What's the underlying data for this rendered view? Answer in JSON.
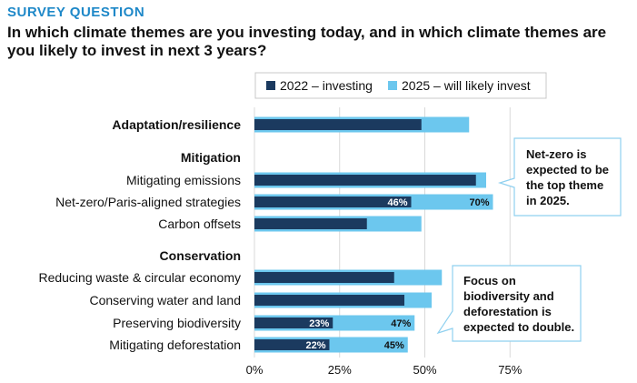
{
  "header": {
    "eyebrow": "SURVEY QUESTION",
    "title": "In which climate themes are you investing today, and in which climate themes are you likely to invest in next 3 years?"
  },
  "colors": {
    "series_2022": "#1b3a5f",
    "series_2025": "#6cc7ee",
    "grid": "#d9d9d9",
    "callout_border": "#8fd0ef"
  },
  "callouts": {
    "netzero": [
      "Net-zero is",
      "expected to be",
      "the top theme",
      "in 2025."
    ],
    "conservation": [
      "Focus on",
      "biodiversity and",
      "deforestation is",
      "expected to double."
    ]
  },
  "chart_data": {
    "type": "bar",
    "orientation": "horizontal",
    "stacked": false,
    "overlaid": true,
    "legend_position": "top",
    "grid": true,
    "xlim": [
      0,
      100
    ],
    "xticks": [
      "0%",
      "25%",
      "50%",
      "75%"
    ],
    "series": [
      {
        "name": "2022 – investing",
        "key": "v2022"
      },
      {
        "name": "2025 – will likely invest",
        "key": "v2025"
      }
    ],
    "rows": [
      {
        "label": "Adaptation/resilience",
        "bold": true,
        "v2022": 49,
        "v2025": 63
      },
      {
        "label": "Mitigation",
        "bold": true,
        "header": true
      },
      {
        "label": "Mitigating emissions",
        "v2022": 65,
        "v2025": 68
      },
      {
        "label": "Net-zero/Paris-aligned strategies",
        "v2022": 46,
        "v2025": 70,
        "label_2022": "46%",
        "label_2025": "70%"
      },
      {
        "label": "Carbon offsets",
        "v2022": 33,
        "v2025": 49
      },
      {
        "label": "Conservation",
        "bold": true,
        "header": true
      },
      {
        "label": "Reducing waste & circular economy",
        "v2022": 41,
        "v2025": 55
      },
      {
        "label": "Conserving water and land",
        "v2022": 44,
        "v2025": 52
      },
      {
        "label": "Preserving biodiversity",
        "v2022": 23,
        "v2025": 47,
        "label_2022": "23%",
        "label_2025": "47%"
      },
      {
        "label": "Mitigating deforestation",
        "v2022": 22,
        "v2025": 45,
        "label_2022": "22%",
        "label_2025": "45%"
      }
    ]
  }
}
